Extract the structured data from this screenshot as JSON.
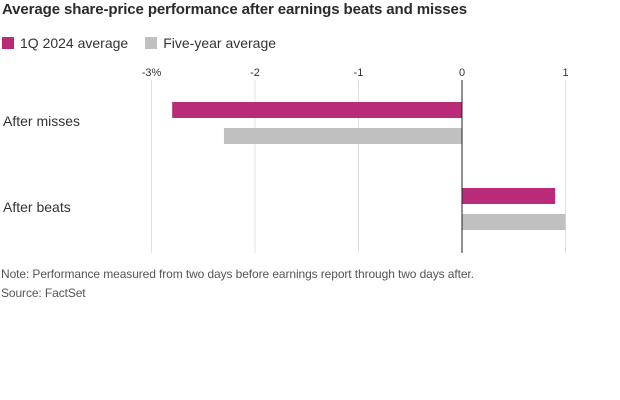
{
  "chart_data": {
    "type": "bar",
    "orientation": "horizontal",
    "title": "Average share-price performance after earnings beats and misses",
    "categories": [
      "After misses",
      "After beats"
    ],
    "series": [
      {
        "name": "1Q 2024 average",
        "color": "#b92a78",
        "values": [
          -2.8,
          0.9
        ]
      },
      {
        "name": "Five-year average",
        "color": "#c0c0c0",
        "values": [
          -2.3,
          1.0
        ]
      }
    ],
    "x_ticks": [
      -3,
      -2,
      -1,
      0,
      1
    ],
    "x_tick_labels": [
      "-3%",
      "-2",
      "-1",
      "0",
      "1"
    ],
    "xlim": [
      -3,
      1
    ],
    "xlabel": "",
    "ylabel": "",
    "grid": "vertical",
    "legend_position": "top-left",
    "note": "Note: Performance measured from two days before earnings report through two days after.",
    "source": "Source: FactSet"
  }
}
